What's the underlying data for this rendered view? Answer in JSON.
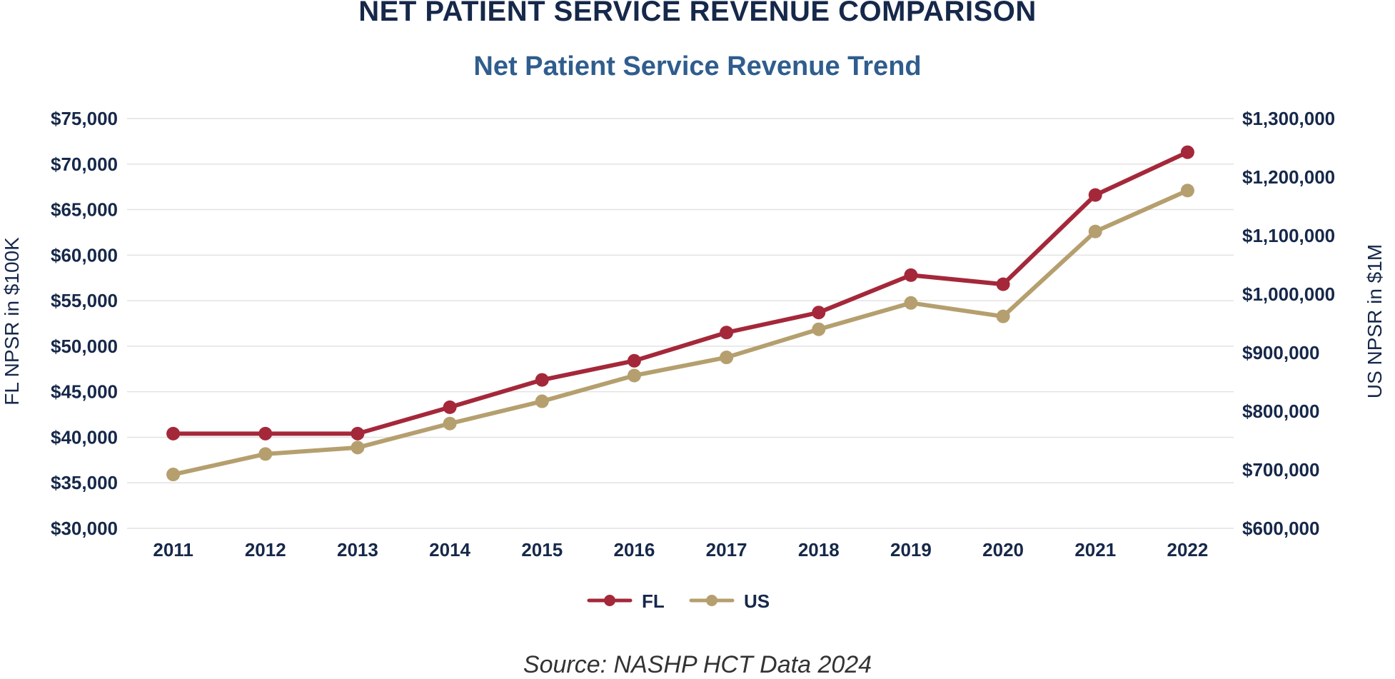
{
  "header": {
    "title": "NET PATIENT SERVICE REVENUE COMPARISON",
    "subtitle": "Net Patient Service Revenue Trend"
  },
  "footer": {
    "source": "Source: NASHP HCT Data 2024"
  },
  "chart_data": {
    "type": "line",
    "title": "Net Patient Service Revenue Trend",
    "x": [
      "2011",
      "2012",
      "2013",
      "2014",
      "2015",
      "2016",
      "2017",
      "2018",
      "2019",
      "2020",
      "2021",
      "2022"
    ],
    "ylabel_left": "FL NPSR in $100K",
    "ylabel_right": "US NPSR in $1M",
    "ylim_left": [
      30000,
      75000
    ],
    "ylim_right": [
      600000,
      1300000
    ],
    "yticks_left": [
      "$30,000",
      "$35,000",
      "$40,000",
      "$45,000",
      "$50,000",
      "$55,000",
      "$60,000",
      "$65,000",
      "$70,000",
      "$75,000"
    ],
    "yticks_right": [
      "$600,000",
      "$700,000",
      "$800,000",
      "$900,000",
      "$1,000,000",
      "$1,100,000",
      "$1,200,000",
      "$1,300,000"
    ],
    "grid": true,
    "legend_position": "bottom",
    "series": [
      {
        "name": "FL",
        "axis": "left",
        "color": "#a4283a",
        "values": [
          40400,
          40400,
          40400,
          43300,
          46300,
          48400,
          51500,
          53700,
          57800,
          56800,
          66600,
          71300
        ]
      },
      {
        "name": "US",
        "axis": "right",
        "color": "#b59f6e",
        "values": [
          692000,
          727000,
          738000,
          779000,
          817000,
          861000,
          892000,
          940000,
          985000,
          962000,
          1107000,
          1177000
        ]
      }
    ]
  }
}
